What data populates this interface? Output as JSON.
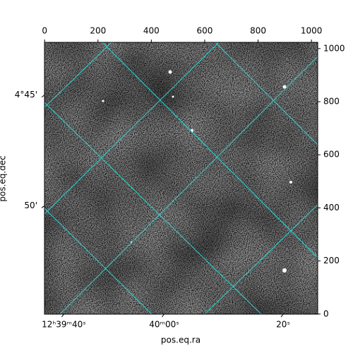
{
  "chart_data": {
    "type": "image",
    "x_label": "pos.eq.ra",
    "y_label": "pos.eq.dec",
    "xlim": [
      -0.5,
      1023.5
    ],
    "ylim": [
      -0.5,
      1023.5
    ],
    "xticks": [
      0,
      200,
      400,
      600,
      800,
      1000
    ],
    "yticks": [
      0,
      200,
      400,
      600,
      800,
      1000
    ],
    "ra_ticks": [
      {
        "value": 72,
        "label": "12ʰ39ᵐ40ˢ"
      },
      {
        "value": 448,
        "label": "40ᵐ00ˢ"
      },
      {
        "value": 894,
        "label": "20ˢ"
      }
    ],
    "dec_ticks": [
      {
        "value": 825,
        "label": "4°45'"
      },
      {
        "value": 408,
        "label": "50'"
      }
    ],
    "grid_color": "#2ad4d4"
  }
}
